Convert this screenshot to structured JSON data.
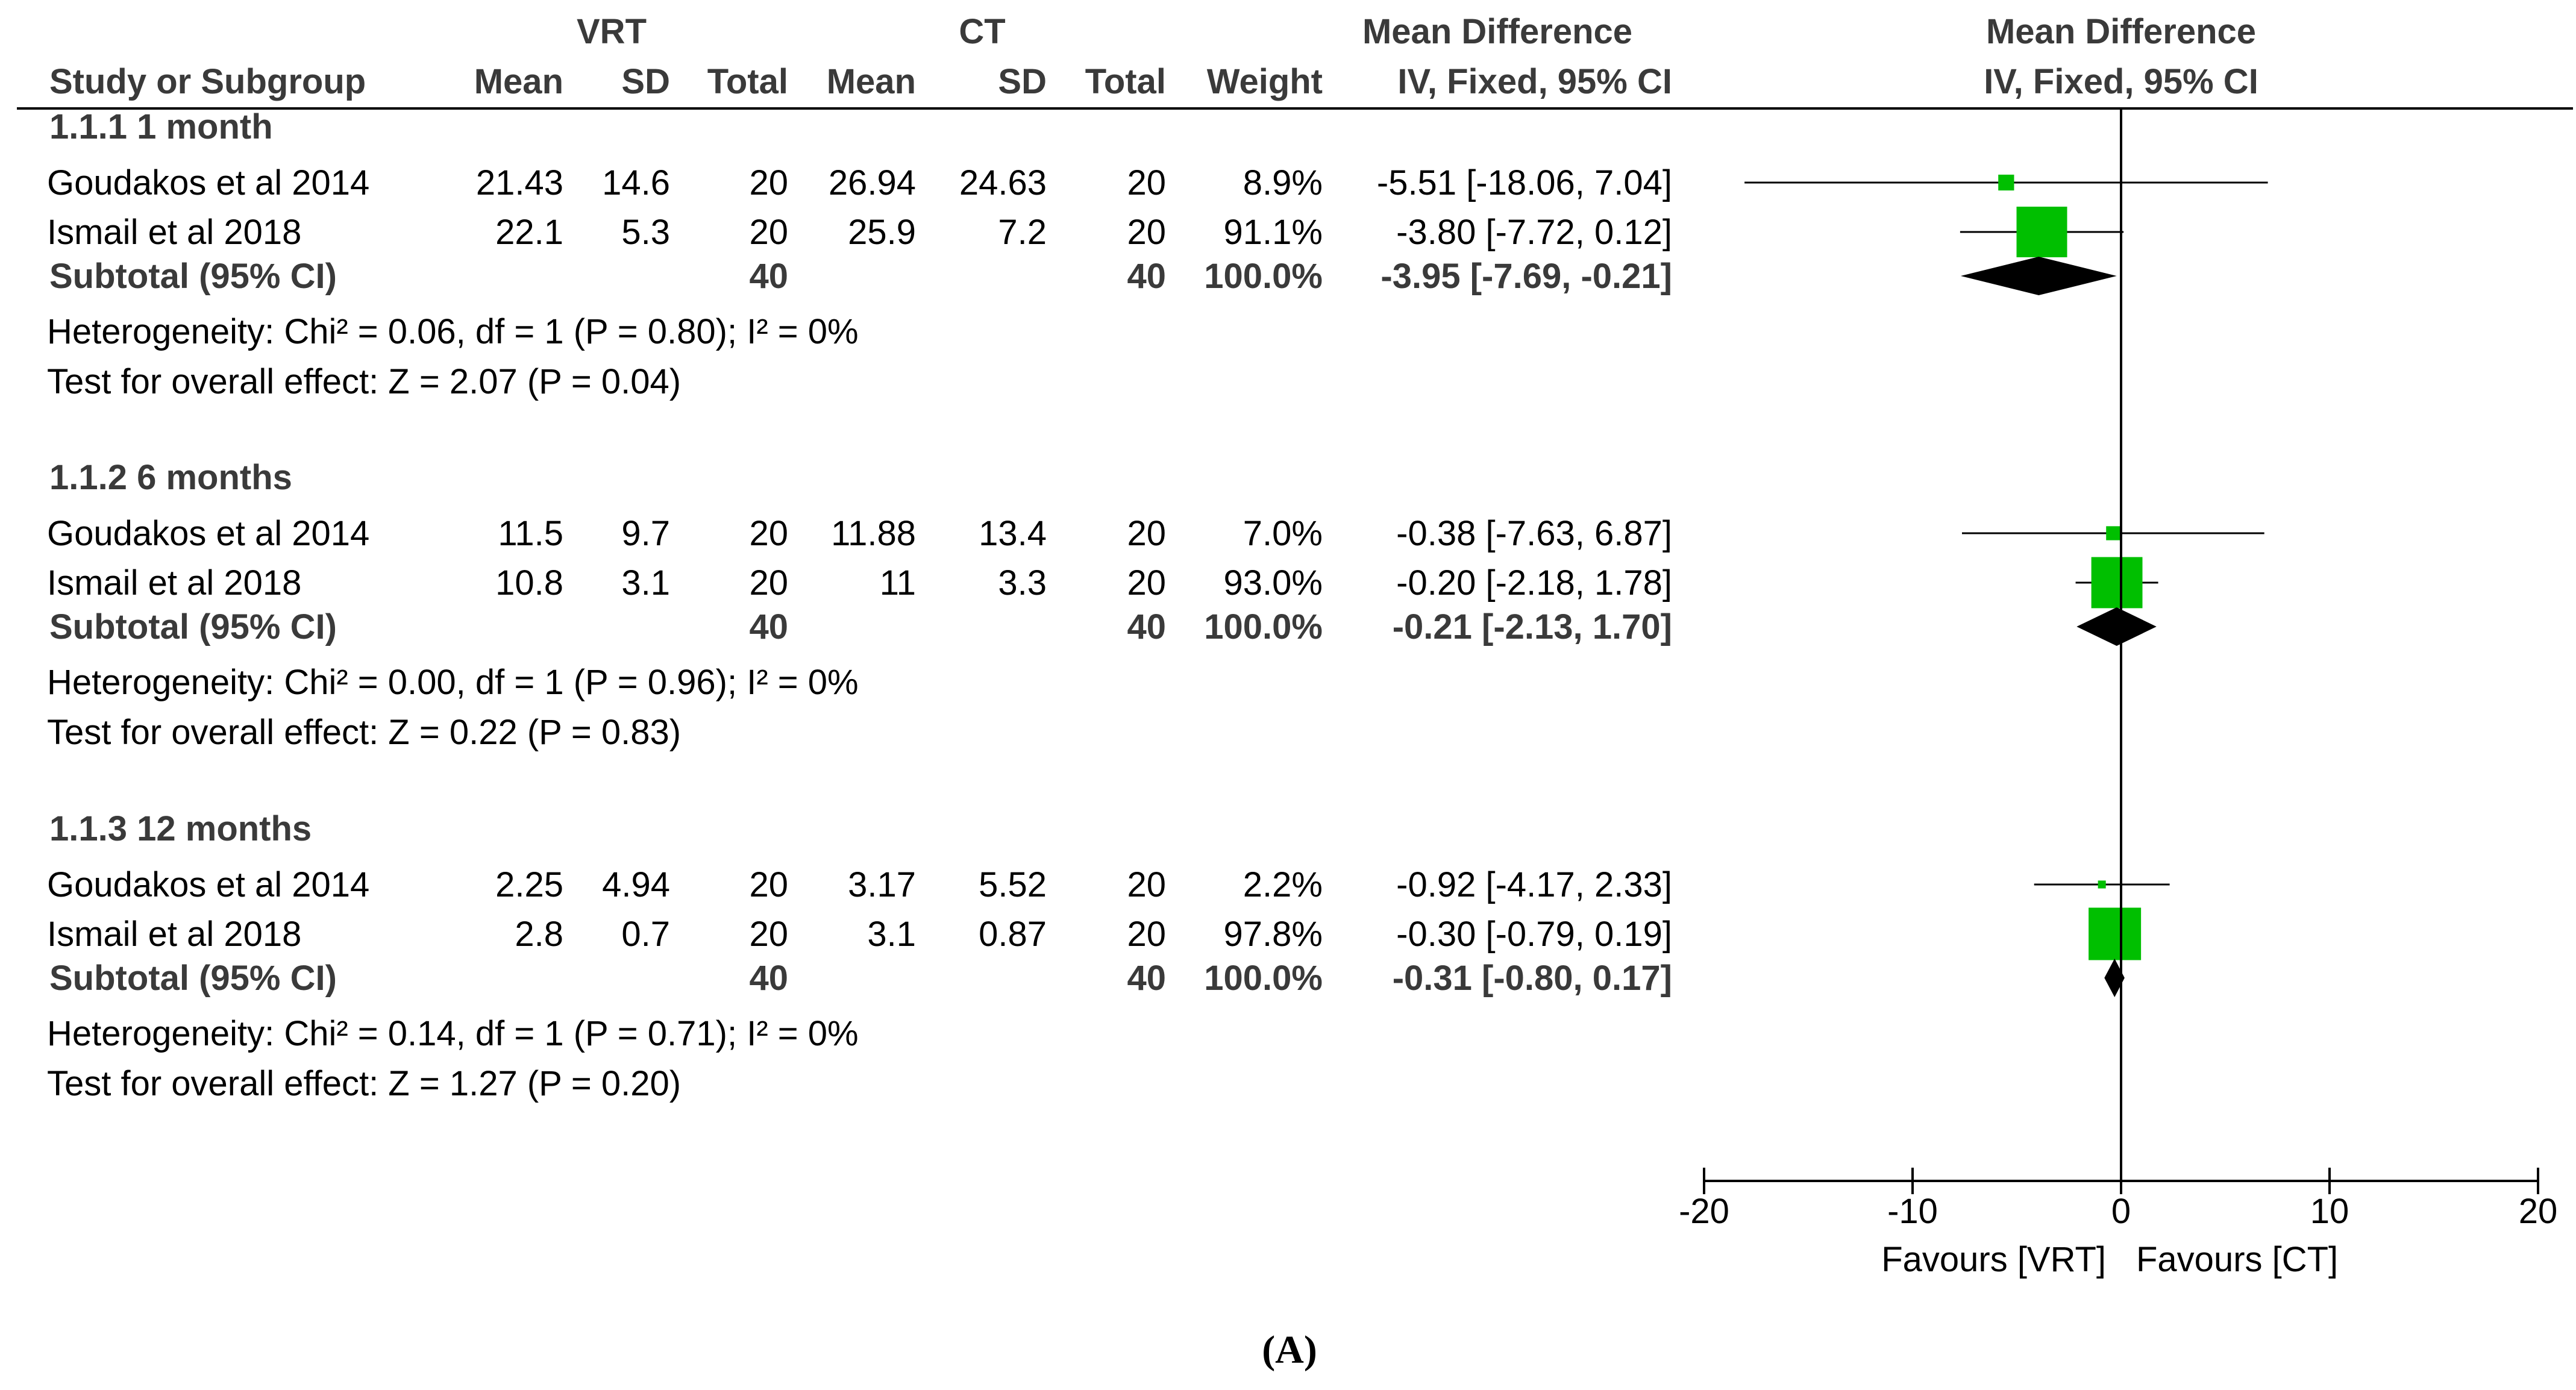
{
  "chart_data": {
    "type": "forest",
    "headers": {
      "group_vrt": "VRT",
      "group_ct": "CT",
      "md_title_table": "Mean Difference",
      "md_sub_table": "IV, Fixed, 95% CI",
      "md_title_plot": "Mean Difference",
      "md_sub_plot": "IV, Fixed, 95% CI",
      "study": "Study or Subgroup",
      "mean": "Mean",
      "sd": "SD",
      "total": "Total",
      "weight": "Weight"
    },
    "subgroups": [
      {
        "title": "1.1.1 1 month",
        "studies": [
          {
            "name": "Goudakos et al 2014",
            "vrt_mean": "21.43",
            "vrt_sd": "14.6",
            "vrt_total": "20",
            "ct_mean": "26.94",
            "ct_sd": "24.63",
            "ct_total": "20",
            "weight": "8.9%",
            "ci_text": "-5.51 [-18.06, 7.04]",
            "md": -5.51,
            "lo": -18.06,
            "hi": 7.04,
            "w": 8.9
          },
          {
            "name": "Ismail et al 2018",
            "vrt_mean": "22.1",
            "vrt_sd": "5.3",
            "vrt_total": "20",
            "ct_mean": "25.9",
            "ct_sd": "7.2",
            "ct_total": "20",
            "weight": "91.1%",
            "ci_text": "-3.80 [-7.72, 0.12]",
            "md": -3.8,
            "lo": -7.72,
            "hi": 0.12,
            "w": 91.1
          }
        ],
        "subtotal": {
          "label": "Subtotal (95% CI)",
          "vrt_total": "40",
          "ct_total": "40",
          "weight": "100.0%",
          "ci_text": "-3.95 [-7.69, -0.21]",
          "md": -3.95,
          "lo": -7.69,
          "hi": -0.21
        },
        "heterogeneity": "Heterogeneity: Chi² = 0.06, df = 1 (P = 0.80); I² = 0%",
        "overall": "Test for overall effect: Z = 2.07 (P = 0.04)"
      },
      {
        "title": "1.1.2 6 months",
        "studies": [
          {
            "name": "Goudakos et al 2014",
            "vrt_mean": "11.5",
            "vrt_sd": "9.7",
            "vrt_total": "20",
            "ct_mean": "11.88",
            "ct_sd": "13.4",
            "ct_total": "20",
            "weight": "7.0%",
            "ci_text": "-0.38 [-7.63, 6.87]",
            "md": -0.38,
            "lo": -7.63,
            "hi": 6.87,
            "w": 7.0
          },
          {
            "name": "Ismail et al 2018",
            "vrt_mean": "10.8",
            "vrt_sd": "3.1",
            "vrt_total": "20",
            "ct_mean": "11",
            "ct_sd": "3.3",
            "ct_total": "20",
            "weight": "93.0%",
            "ci_text": "-0.20 [-2.18, 1.78]",
            "md": -0.2,
            "lo": -2.18,
            "hi": 1.78,
            "w": 93.0
          }
        ],
        "subtotal": {
          "label": "Subtotal (95% CI)",
          "vrt_total": "40",
          "ct_total": "40",
          "weight": "100.0%",
          "ci_text": "-0.21 [-2.13, 1.70]",
          "md": -0.21,
          "lo": -2.13,
          "hi": 1.7
        },
        "heterogeneity": "Heterogeneity: Chi² = 0.00, df = 1 (P = 0.96); I² = 0%",
        "overall": "Test for overall effect: Z = 0.22 (P = 0.83)"
      },
      {
        "title": "1.1.3 12 months",
        "studies": [
          {
            "name": "Goudakos et al 2014",
            "vrt_mean": "2.25",
            "vrt_sd": "4.94",
            "vrt_total": "20",
            "ct_mean": "3.17",
            "ct_sd": "5.52",
            "ct_total": "20",
            "weight": "2.2%",
            "ci_text": "-0.92 [-4.17, 2.33]",
            "md": -0.92,
            "lo": -4.17,
            "hi": 2.33,
            "w": 2.2
          },
          {
            "name": "Ismail et al 2018",
            "vrt_mean": "2.8",
            "vrt_sd": "0.7",
            "vrt_total": "20",
            "ct_mean": "3.1",
            "ct_sd": "0.87",
            "ct_total": "20",
            "weight": "97.8%",
            "ci_text": "-0.30 [-0.79, 0.19]",
            "md": -0.3,
            "lo": -0.79,
            "hi": 0.19,
            "w": 97.8
          }
        ],
        "subtotal": {
          "label": "Subtotal (95% CI)",
          "vrt_total": "40",
          "ct_total": "40",
          "weight": "100.0%",
          "ci_text": "-0.31 [-0.80, 0.17]",
          "md": -0.31,
          "lo": -0.8,
          "hi": 0.17
        },
        "heterogeneity": "Heterogeneity: Chi² = 0.14, df = 1 (P = 0.71); I² = 0%",
        "overall": "Test for overall effect: Z = 1.27 (P = 0.20)"
      }
    ],
    "x_axis": {
      "range": [
        -20,
        20
      ],
      "ticks": [
        -20,
        -10,
        0,
        10,
        20
      ],
      "tick_labels": [
        "-20",
        "-10",
        "0",
        "10",
        "20"
      ],
      "favours_left": "Favours [VRT]",
      "favours_right": "Favours [CT]"
    },
    "colors": {
      "study_box": "#00bf00",
      "diamond": "#000000",
      "text": "#000000",
      "header": "#3a3a3a"
    },
    "caption": "(A)"
  }
}
